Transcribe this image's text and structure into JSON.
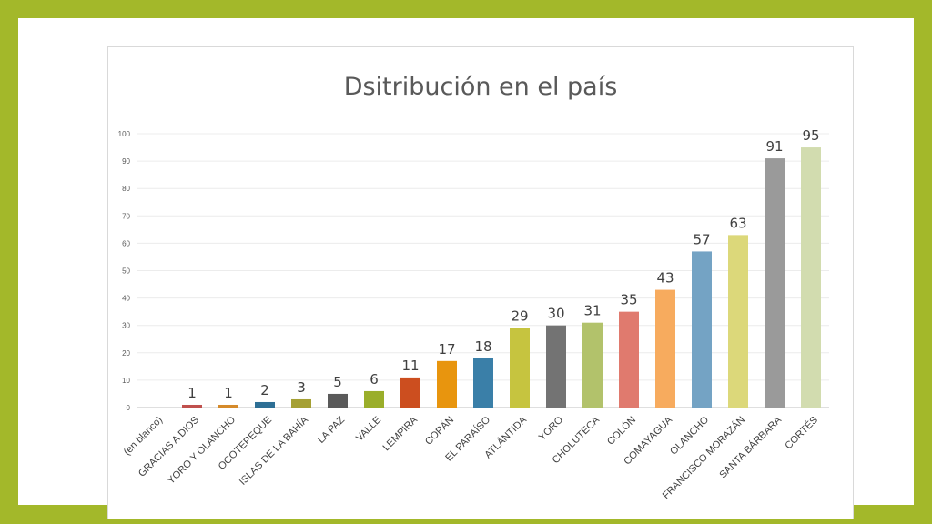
{
  "chart_data": {
    "type": "bar",
    "title": "Dsitribución en el país",
    "xlabel": "",
    "ylabel": "",
    "ylim": [
      0,
      100
    ],
    "yticks": [
      0,
      10,
      20,
      30,
      40,
      50,
      60,
      70,
      80,
      90,
      100
    ],
    "grid": true,
    "categories": [
      "(en blanco)",
      "GRACIAS A DIOS",
      "YORO Y OLANCHO",
      "OCOTEPEQUE",
      "ISLAS DE LA BAHÍA",
      "LA PAZ",
      "VALLE",
      "LEMPIRA",
      "COPÁN",
      "EL PARAÍSO",
      "ATLÁNTIDA",
      "YORO",
      "CHOLUTECA",
      "COLÓN",
      "COMAYAGUA",
      "OLANCHO",
      "FRANCISCO MORAZÁN",
      "SANTA BÁRBARA",
      "CORTÉS"
    ],
    "values": [
      null,
      1,
      1,
      2,
      3,
      5,
      6,
      11,
      17,
      18,
      29,
      30,
      31,
      35,
      43,
      57,
      63,
      91,
      95
    ],
    "colors": [
      "#ffffff",
      "#c0504d",
      "#d58a2a",
      "#2e6f95",
      "#a5a034",
      "#5a5a5a",
      "#9aae2a",
      "#cc4e1f",
      "#e8950e",
      "#3a7fa8",
      "#c6c43f",
      "#737373",
      "#b2c26b",
      "#e07a6e",
      "#f7ab5e",
      "#74a3c4",
      "#dcd87a",
      "#9a9a9a",
      "#d2dcaf"
    ]
  }
}
